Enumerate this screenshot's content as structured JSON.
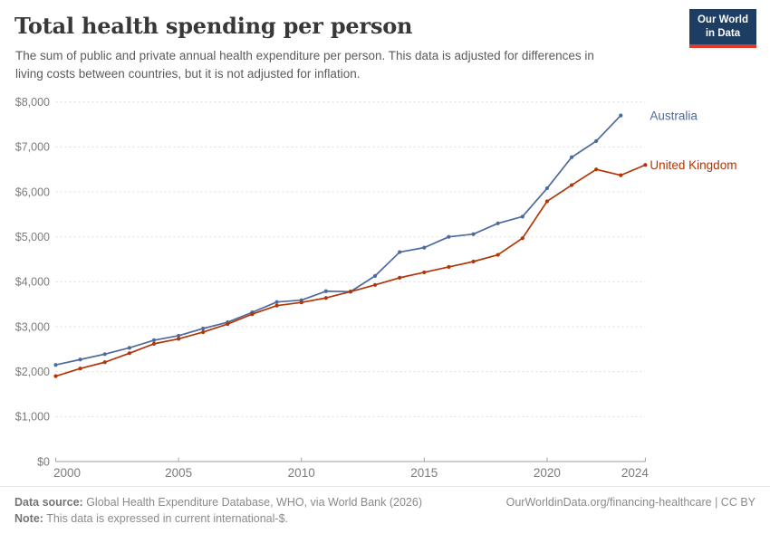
{
  "header": {
    "title": "Total health spending per person",
    "subtitle_line1": "The sum of public and private annual health expenditure per person. This data is adjusted for differences in",
    "subtitle_line2": "living costs between countries, but it is not adjusted for inflation.",
    "logo_line1": "Our World",
    "logo_line2": "in Data"
  },
  "chart_data": {
    "type": "line",
    "title": "Total health spending per person",
    "xlabel": "",
    "ylabel": "",
    "xlim": [
      2000,
      2024
    ],
    "ylim": [
      0,
      8000
    ],
    "grid": "horizontal-dashed",
    "legend_position": "end-of-line-labels",
    "x_ticks": [
      2000,
      2005,
      2010,
      2015,
      2020,
      2024
    ],
    "y_ticks": [
      0,
      1000,
      2000,
      3000,
      4000,
      5000,
      6000,
      7000,
      8000
    ],
    "y_tick_labels": [
      "$0",
      "$1,000",
      "$2,000",
      "$3,000",
      "$4,000",
      "$5,000",
      "$6,000",
      "$7,000",
      "$8,000"
    ],
    "series": [
      {
        "name": "Australia",
        "color": "#4C6A9C",
        "x": [
          2000,
          2001,
          2002,
          2003,
          2004,
          2005,
          2006,
          2007,
          2008,
          2009,
          2010,
          2011,
          2012,
          2013,
          2014,
          2015,
          2016,
          2017,
          2018,
          2019,
          2020,
          2021,
          2022,
          2023
        ],
        "values": [
          2150,
          2270,
          2390,
          2530,
          2700,
          2800,
          2960,
          3100,
          3320,
          3550,
          3590,
          3790,
          3780,
          4130,
          4660,
          4760,
          5000,
          5060,
          5300,
          5450,
          6080,
          6770,
          7130,
          7700
        ]
      },
      {
        "name": "United Kingdom",
        "color": "#B13507",
        "x": [
          2000,
          2001,
          2002,
          2003,
          2004,
          2005,
          2006,
          2007,
          2008,
          2009,
          2010,
          2011,
          2012,
          2013,
          2014,
          2015,
          2016,
          2017,
          2018,
          2019,
          2020,
          2021,
          2022,
          2023,
          2024
        ],
        "values": [
          1900,
          2070,
          2210,
          2410,
          2620,
          2730,
          2880,
          3060,
          3280,
          3470,
          3540,
          3640,
          3780,
          3930,
          4090,
          4210,
          4330,
          4450,
          4600,
          4970,
          5790,
          6150,
          6500,
          6370,
          6600
        ]
      }
    ]
  },
  "footer": {
    "source_label": "Data source:",
    "source_text": " Global Health Expenditure Database, WHO, via World Bank (2026)",
    "url_text": "OurWorldinData.org/financing-healthcare | CC BY",
    "note_label": "Note:",
    "note_text": " This data is expressed in current international-$."
  }
}
